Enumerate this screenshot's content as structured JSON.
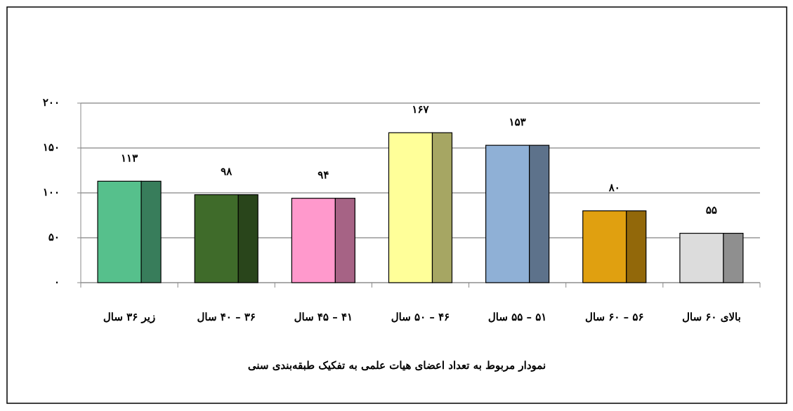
{
  "chart_data": {
    "type": "bar",
    "title": "نمودار مربوط به تعداد اعضای هیات علمی به تفکیک طبقه‌بندی سنی",
    "categories": [
      "زیر ۳۶ سال",
      "۳۶ – ۴۰ سال",
      "۴۱ – ۴۵ سال",
      "۴۶ – ۵۰ سال",
      "۵۱ – ۵۵ سال",
      "۵۶ – ۶۰ سال",
      "بالای ۶۰ سال"
    ],
    "values": [
      113,
      98,
      94,
      167,
      153,
      80,
      55
    ],
    "value_labels": [
      "۱۱۳",
      "۹۸",
      "۹۴",
      "۱۶۷",
      "۱۵۳",
      "۸۰",
      "۵۵"
    ],
    "colors": [
      "#56c08c",
      "#3f6b2a",
      "#ff99cc",
      "#ffff99",
      "#8fb0d6",
      "#e0a010",
      "#dcdcdc"
    ],
    "ylim": [
      0,
      200
    ],
    "yticks": [
      {
        "value": 0,
        "label": "۰"
      },
      {
        "value": 50,
        "label": "۵۰"
      },
      {
        "value": 100,
        "label": "۱۰۰"
      },
      {
        "value": 150,
        "label": "۱۵۰"
      },
      {
        "value": 200,
        "label": "۲۰۰"
      }
    ],
    "grid": true
  }
}
